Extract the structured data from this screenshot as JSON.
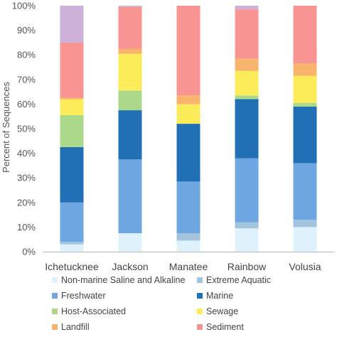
{
  "chart_data": {
    "type": "bar",
    "stacked": true,
    "ylabel": "Percent of Sequences",
    "ylim": [
      0,
      100
    ],
    "yticks": [
      "0%",
      "10%",
      "20%",
      "30%",
      "40%",
      "50%",
      "60%",
      "70%",
      "80%",
      "90%",
      "100%"
    ],
    "grid": false,
    "legend_position": "bottom",
    "categories": [
      "Ichetucknee",
      "Jackson",
      "Manatee",
      "Rainbow",
      "Volusia"
    ],
    "series": [
      {
        "name": "Non-marine Saline and Alkaline",
        "color": "#dff1fb",
        "values": [
          3.0,
          7.5,
          4.5,
          9.5,
          10.0
        ]
      },
      {
        "name": "Extreme Aquatic",
        "color": "#a3c4de",
        "values": [
          1.0,
          0.0,
          3.0,
          2.5,
          3.0
        ]
      },
      {
        "name": "Freshwater",
        "color": "#6ea6e2",
        "values": [
          16.0,
          30.0,
          21.0,
          26.0,
          23.0
        ]
      },
      {
        "name": "Marine",
        "color": "#2170b5",
        "values": [
          22.5,
          20.0,
          23.5,
          24.0,
          23.0
        ]
      },
      {
        "name": "Host-Associated",
        "color": "#acd88a",
        "values": [
          13.0,
          8.0,
          0.0,
          1.5,
          1.5
        ]
      },
      {
        "name": "Sewage",
        "color": "#fcec5a",
        "values": [
          6.5,
          15.0,
          8.0,
          10.0,
          11.0
        ]
      },
      {
        "name": "Landfill",
        "color": "#f8b46c",
        "values": [
          0.5,
          2.0,
          3.5,
          5.0,
          5.0
        ]
      },
      {
        "name": "Sediment",
        "color": "#f89491",
        "values": [
          22.5,
          17.0,
          36.5,
          20.0,
          23.5
        ]
      },
      {
        "color": "#cdb1d9",
        "values": [
          15.0,
          0.5,
          0.0,
          1.5,
          0.0
        ]
      }
    ],
    "legend_entries": [
      {
        "name": "Non-marine Saline and Alkaline",
        "color": "#dff1fb"
      },
      {
        "name": "Extreme Aquatic",
        "color": "#a3c4de"
      },
      {
        "name": "Freshwater",
        "color": "#6ea6e2"
      },
      {
        "name": "Marine",
        "color": "#2170b5"
      },
      {
        "name": "Host-Associated",
        "color": "#acd88a"
      },
      {
        "name": "Sewage",
        "color": "#fcec5a"
      },
      {
        "name": "Landfill",
        "color": "#f8b46c"
      },
      {
        "name": "Sediment",
        "color": "#f89491"
      }
    ]
  }
}
